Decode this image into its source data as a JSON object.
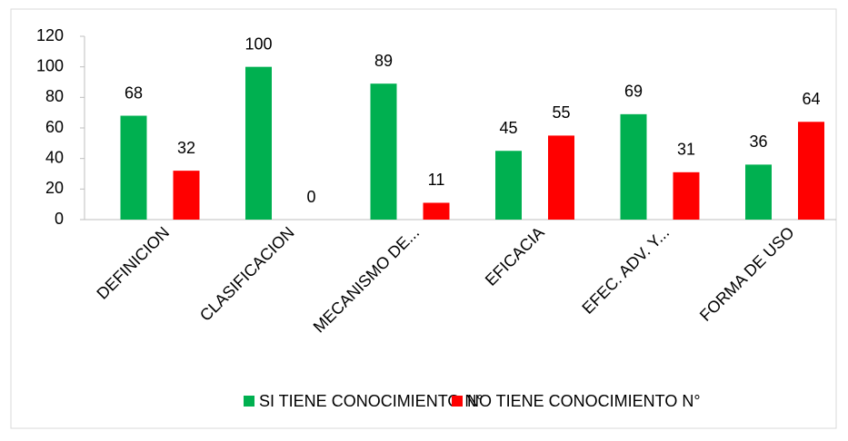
{
  "chart_data": {
    "type": "bar",
    "categories": [
      "DEFINICION",
      "CLASIFICACION",
      "MECANISMO DE...",
      "EFICACIA",
      "EFEC. ADV. Y...",
      "FORMA DE USO"
    ],
    "series": [
      {
        "name": "SI TIENE CONOCIMIENTO N°",
        "color": "#00b050",
        "values": [
          68,
          100,
          89,
          45,
          69,
          36
        ]
      },
      {
        "name": "NO TIENE CONOCIMIENTO N°",
        "color": "#ff0000",
        "values": [
          32,
          0,
          11,
          55,
          31,
          64
        ]
      }
    ],
    "ylim": [
      0,
      120
    ],
    "yticks": [
      0,
      20,
      40,
      60,
      80,
      100,
      120
    ],
    "grid": false,
    "legend": "bottom"
  }
}
